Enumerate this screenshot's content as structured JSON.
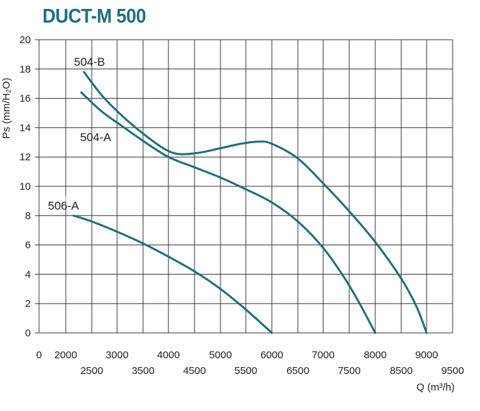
{
  "chart_data": {
    "type": "line",
    "title": "DUCT-M 500",
    "xlabel": "Q (m³/h)",
    "ylabel": "Ps (mm/H₂O)",
    "xlim": [
      0,
      9500
    ],
    "ylim": [
      0,
      20
    ],
    "grid": true,
    "x_ticks": [
      "0",
      "2000",
      "2500",
      "3000",
      "3500",
      "4000",
      "4500",
      "5000",
      "5500",
      "6000",
      "6500",
      "7000",
      "7500",
      "8000",
      "8500",
      "9000",
      "9500"
    ],
    "y_ticks": [
      0,
      2,
      4,
      6,
      8,
      10,
      12,
      14,
      16,
      18,
      20
    ],
    "curve_color": "#1c6f7f",
    "series": [
      {
        "name": "504-B",
        "points": [
          [
            2350,
            17.8
          ],
          [
            2700,
            16.2
          ],
          [
            3100,
            14.8
          ],
          [
            3500,
            13.6
          ],
          [
            3900,
            12.6
          ],
          [
            4200,
            12.2
          ],
          [
            4600,
            12.3
          ],
          [
            5000,
            12.6
          ],
          [
            5400,
            12.9
          ],
          [
            5750,
            13.05
          ],
          [
            6000,
            12.9
          ],
          [
            6500,
            11.9
          ],
          [
            7000,
            10.2
          ],
          [
            7500,
            8.3
          ],
          [
            8000,
            6.2
          ],
          [
            8500,
            3.7
          ],
          [
            8800,
            1.8
          ],
          [
            9000,
            0
          ]
        ]
      },
      {
        "name": "504-A",
        "points": [
          [
            2300,
            16.4
          ],
          [
            2700,
            15.1
          ],
          [
            3100,
            14.1
          ],
          [
            3500,
            13.1
          ],
          [
            4000,
            12.0
          ],
          [
            4500,
            11.3
          ],
          [
            5000,
            10.6
          ],
          [
            5500,
            9.8
          ],
          [
            6000,
            8.9
          ],
          [
            6500,
            7.6
          ],
          [
            7000,
            5.8
          ],
          [
            7400,
            3.8
          ],
          [
            7700,
            2.0
          ],
          [
            8000,
            0
          ]
        ]
      },
      {
        "name": "506-A",
        "points": [
          [
            2150,
            8.0
          ],
          [
            2500,
            7.6
          ],
          [
            3000,
            6.9
          ],
          [
            3500,
            6.1
          ],
          [
            4000,
            5.2
          ],
          [
            4500,
            4.2
          ],
          [
            5000,
            3.0
          ],
          [
            5500,
            1.6
          ],
          [
            6000,
            0
          ]
        ]
      }
    ]
  }
}
